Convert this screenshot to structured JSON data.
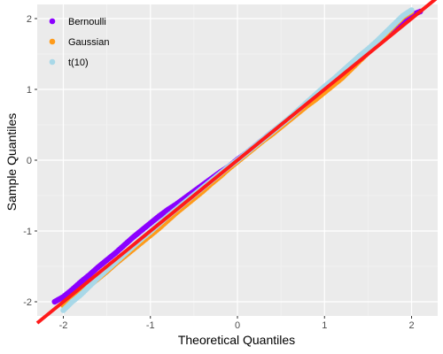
{
  "chart_data": {
    "type": "scatter",
    "title": "",
    "xlabel": "Theoretical Quantiles",
    "ylabel": "Sample Quantiles",
    "xlim": [
      -2.3,
      2.3
    ],
    "ylim": [
      -2.2,
      2.2
    ],
    "x_ticks": [
      -2,
      -1,
      0,
      1,
      2
    ],
    "y_ticks": [
      -2,
      -1,
      0,
      1,
      2
    ],
    "x_tick_labels": [
      "-2",
      "-1",
      "0",
      "1",
      "2"
    ],
    "y_tick_labels": [
      "-2",
      "-1",
      "0",
      "1",
      "2"
    ],
    "grid": true,
    "legend_position": "top-left",
    "series": [
      {
        "name": "Bernoulli",
        "color": "#8b00ff",
        "points": [
          [
            -2.1,
            -2.0
          ],
          [
            -2.0,
            -1.93
          ],
          [
            -1.9,
            -1.83
          ],
          [
            -1.8,
            -1.72
          ],
          [
            -1.7,
            -1.62
          ],
          [
            -1.6,
            -1.51
          ],
          [
            -1.5,
            -1.41
          ],
          [
            -1.4,
            -1.31
          ],
          [
            -1.3,
            -1.2
          ],
          [
            -1.2,
            -1.09
          ],
          [
            -1.1,
            -0.99
          ],
          [
            -1.0,
            -0.89
          ],
          [
            -0.9,
            -0.79
          ],
          [
            -0.8,
            -0.7
          ],
          [
            -0.7,
            -0.62
          ],
          [
            -0.6,
            -0.53
          ],
          [
            -0.5,
            -0.44
          ],
          [
            -0.4,
            -0.35
          ],
          [
            -0.3,
            -0.26
          ],
          [
            -0.2,
            -0.17
          ],
          [
            -0.1,
            -0.09
          ],
          [
            0.0,
            0.01
          ],
          [
            0.1,
            0.1
          ],
          [
            0.2,
            0.2
          ],
          [
            0.3,
            0.3
          ],
          [
            0.4,
            0.4
          ],
          [
            0.5,
            0.49
          ],
          [
            0.6,
            0.58
          ],
          [
            0.7,
            0.68
          ],
          [
            0.8,
            0.78
          ],
          [
            0.9,
            0.89
          ],
          [
            1.0,
            1.0
          ],
          [
            1.1,
            1.1
          ],
          [
            1.2,
            1.22
          ],
          [
            1.3,
            1.33
          ],
          [
            1.4,
            1.45
          ],
          [
            1.5,
            1.56
          ],
          [
            1.6,
            1.66
          ],
          [
            1.7,
            1.76
          ],
          [
            1.8,
            1.86
          ],
          [
            1.9,
            1.96
          ],
          [
            2.0,
            2.05
          ],
          [
            2.1,
            2.1
          ]
        ]
      },
      {
        "name": "Gaussian",
        "color": "#ff9b1a",
        "points": [
          [
            -2.0,
            -2.05
          ],
          [
            -1.9,
            -1.96
          ],
          [
            -1.8,
            -1.87
          ],
          [
            -1.7,
            -1.77
          ],
          [
            -1.6,
            -1.67
          ],
          [
            -1.5,
            -1.57
          ],
          [
            -1.4,
            -1.46
          ],
          [
            -1.3,
            -1.36
          ],
          [
            -1.2,
            -1.26
          ],
          [
            -1.1,
            -1.16
          ],
          [
            -1.0,
            -1.06
          ],
          [
            -0.9,
            -0.96
          ],
          [
            -0.8,
            -0.85
          ],
          [
            -0.7,
            -0.74
          ],
          [
            -0.6,
            -0.64
          ],
          [
            -0.5,
            -0.54
          ],
          [
            -0.4,
            -0.44
          ],
          [
            -0.3,
            -0.33
          ],
          [
            -0.2,
            -0.23
          ],
          [
            -0.1,
            -0.12
          ],
          [
            0.0,
            -0.02
          ],
          [
            0.1,
            0.08
          ],
          [
            0.2,
            0.18
          ],
          [
            0.3,
            0.28
          ],
          [
            0.4,
            0.37
          ],
          [
            0.5,
            0.47
          ],
          [
            0.6,
            0.57
          ],
          [
            0.7,
            0.67
          ],
          [
            0.8,
            0.77
          ],
          [
            0.9,
            0.86
          ],
          [
            1.0,
            0.96
          ],
          [
            1.1,
            1.06
          ],
          [
            1.2,
            1.16
          ],
          [
            1.3,
            1.28
          ],
          [
            1.4,
            1.4
          ],
          [
            1.5,
            1.52
          ],
          [
            1.6,
            1.64
          ],
          [
            1.7,
            1.78
          ],
          [
            1.8,
            1.9
          ],
          [
            1.9,
            2.02
          ],
          [
            2.0,
            2.1
          ]
        ]
      },
      {
        "name": "t(10)",
        "color": "#a8d8e8",
        "points": [
          [
            -2.0,
            -2.12
          ],
          [
            -1.9,
            -2.0
          ],
          [
            -1.8,
            -1.9
          ],
          [
            -1.7,
            -1.78
          ],
          [
            -1.6,
            -1.66
          ],
          [
            -1.5,
            -1.55
          ],
          [
            -1.4,
            -1.44
          ],
          [
            -1.3,
            -1.33
          ],
          [
            -1.2,
            -1.22
          ],
          [
            -1.1,
            -1.11
          ],
          [
            -1.0,
            -1.01
          ],
          [
            -0.9,
            -0.9
          ],
          [
            -0.8,
            -0.79
          ],
          [
            -0.7,
            -0.69
          ],
          [
            -0.6,
            -0.59
          ],
          [
            -0.5,
            -0.49
          ],
          [
            -0.4,
            -0.39
          ],
          [
            -0.3,
            -0.29
          ],
          [
            -0.2,
            -0.19
          ],
          [
            -0.1,
            -0.09
          ],
          [
            0.0,
            0.0
          ],
          [
            0.1,
            0.1
          ],
          [
            0.2,
            0.2
          ],
          [
            0.3,
            0.3
          ],
          [
            0.4,
            0.4
          ],
          [
            0.5,
            0.5
          ],
          [
            0.6,
            0.6
          ],
          [
            0.7,
            0.71
          ],
          [
            0.8,
            0.82
          ],
          [
            0.9,
            0.93
          ],
          [
            1.0,
            1.04
          ],
          [
            1.1,
            1.14
          ],
          [
            1.2,
            1.25
          ],
          [
            1.3,
            1.36
          ],
          [
            1.4,
            1.47
          ],
          [
            1.5,
            1.57
          ],
          [
            1.6,
            1.68
          ],
          [
            1.7,
            1.8
          ],
          [
            1.8,
            1.92
          ],
          [
            1.9,
            2.04
          ],
          [
            2.0,
            2.12
          ]
        ]
      }
    ],
    "reference_line": {
      "color": "#ff1a1a",
      "points": [
        [
          -2.3,
          -2.3
        ],
        [
          2.3,
          2.3
        ]
      ]
    }
  }
}
